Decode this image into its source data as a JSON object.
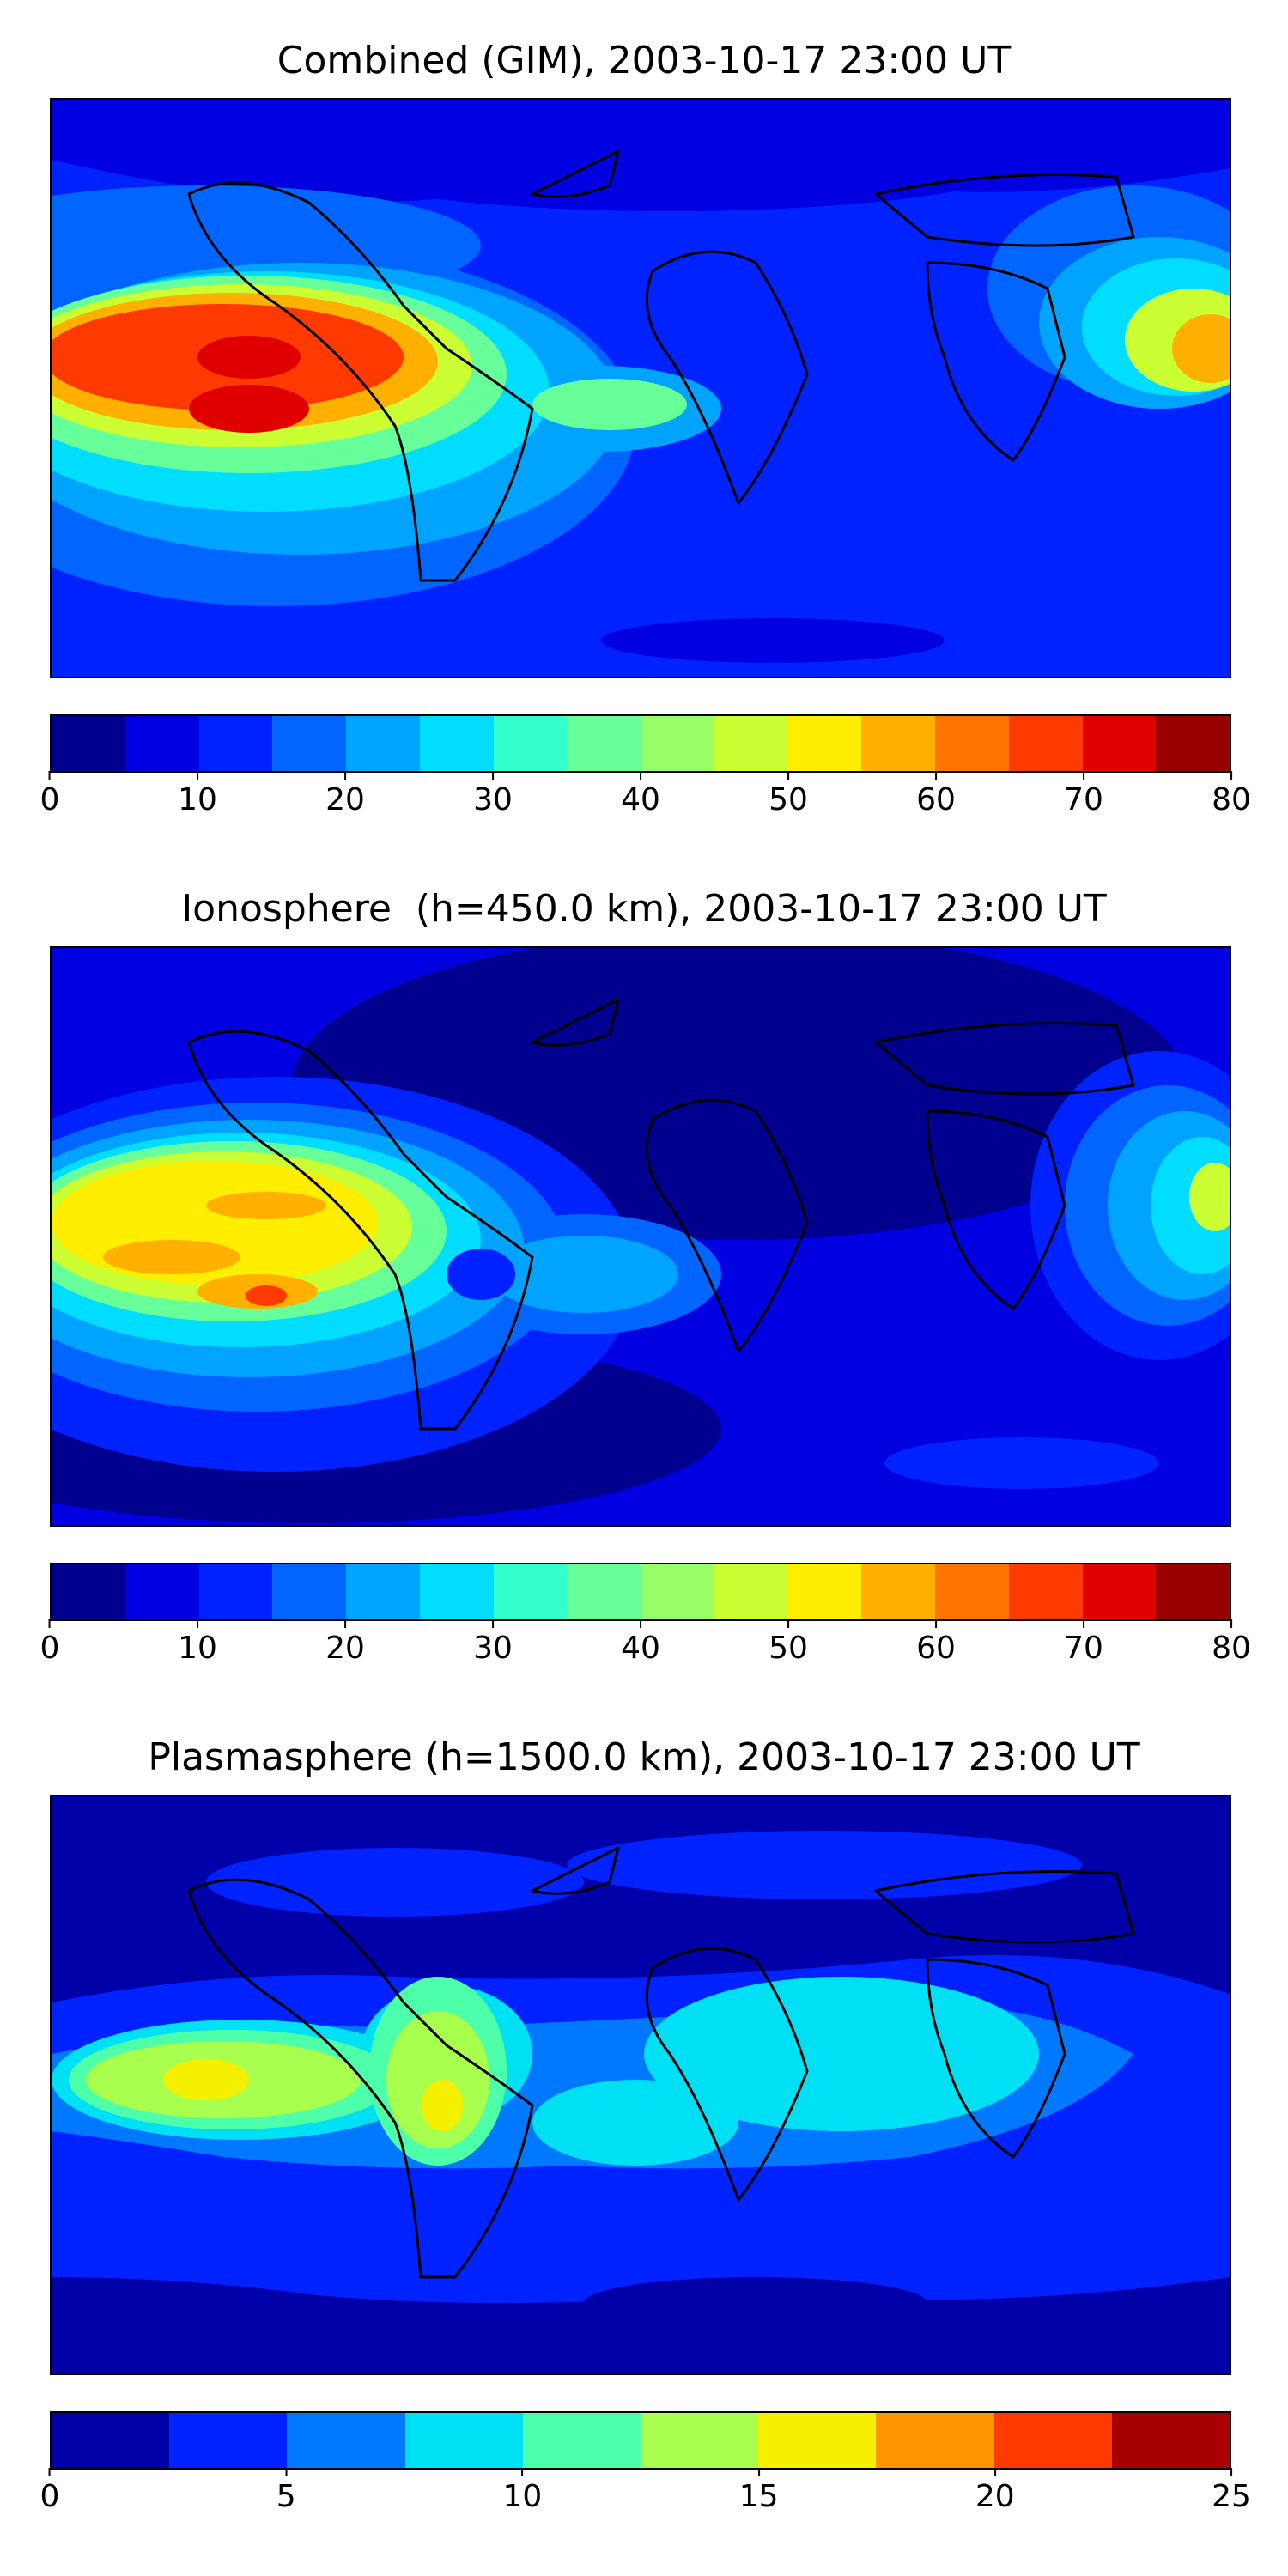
{
  "panels": [
    {
      "title": "Combined (GIM), 2003-10-17 23:00 UT",
      "colorbar": {
        "vmin": 0,
        "vmax": 80,
        "ticks": [
          "0",
          "10",
          "20",
          "30",
          "40",
          "50",
          "60",
          "70",
          "80"
        ],
        "colors": [
          "#00008f",
          "#0000e0",
          "#0022ff",
          "#0066ff",
          "#00a4ff",
          "#00ddff",
          "#33ffcc",
          "#66ff99",
          "#99ff66",
          "#ccff33",
          "#ffee00",
          "#ffb000",
          "#ff7400",
          "#ff3a00",
          "#e00000",
          "#990000"
        ]
      }
    },
    {
      "title": "Ionosphere  (h=450.0 km), 2003-10-17 23:00 UT",
      "colorbar": {
        "vmin": 0,
        "vmax": 80,
        "ticks": [
          "0",
          "10",
          "20",
          "30",
          "40",
          "50",
          "60",
          "70",
          "80"
        ],
        "colors": [
          "#00008f",
          "#0000e0",
          "#0022ff",
          "#0066ff",
          "#00a4ff",
          "#00ddff",
          "#33ffcc",
          "#66ff99",
          "#99ff66",
          "#ccff33",
          "#ffee00",
          "#ffb000",
          "#ff7400",
          "#ff3a00",
          "#e00000",
          "#990000"
        ]
      }
    },
    {
      "title": "Plasmasphere (h=1500.0 km), 2003-10-17 23:00 UT",
      "colorbar": {
        "vmin": 0,
        "vmax": 25,
        "ticks": [
          "0",
          "5",
          "10",
          "15",
          "20",
          "25"
        ],
        "colors": [
          "#0000a8",
          "#0022ff",
          "#0078ff",
          "#00e0f5",
          "#4dffa8",
          "#a8ff4d",
          "#f5f000",
          "#ff9600",
          "#ff3a00",
          "#a80000"
        ]
      }
    }
  ]
}
